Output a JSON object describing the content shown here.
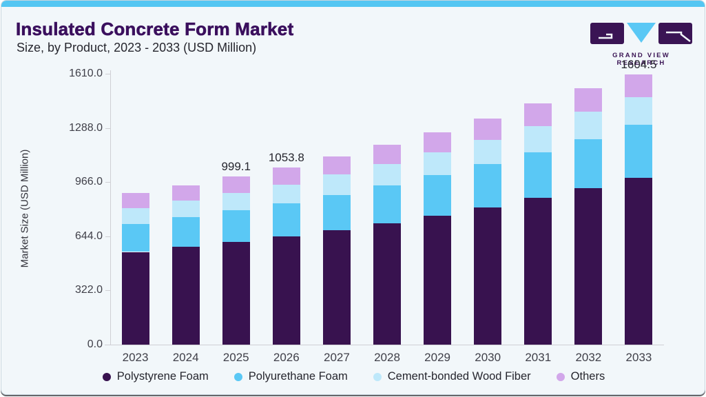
{
  "header": {
    "title": "Insulated Concrete Form Market",
    "subtitle": "Size, by Product, 2023 - 2033 (USD Million)",
    "logo_text": "GRAND VIEW RESEARCH"
  },
  "colors": {
    "accent_topbar": "#54c6f2",
    "card_background": "#f2f7fa",
    "title_purple": "#3a0f5d",
    "axis_line": "#cfcfd4",
    "tick_text": "#3f3f48",
    "logo_purple": "#3a1454",
    "logo_cyan": "#5ac8f5"
  },
  "chart_data": {
    "type": "bar",
    "stacked": true,
    "title": "Insulated Concrete Form Market Size, by Product, 2023 - 2033 (USD Million)",
    "xlabel": "",
    "ylabel": "Market Size (USD Million)",
    "ylim": [
      0,
      1610
    ],
    "ytick_labels": [
      "0.0",
      "322.0",
      "644.0",
      "966.0",
      "1288.0",
      "1610.0"
    ],
    "yticks": [
      0,
      322,
      644,
      966,
      1288,
      1610
    ],
    "grid": false,
    "legend_position": "bottom",
    "categories": [
      "2023",
      "2024",
      "2025",
      "2026",
      "2027",
      "2028",
      "2029",
      "2030",
      "2031",
      "2032",
      "2033"
    ],
    "series": [
      {
        "name": "Polystyrene Foam",
        "color": "#38124f",
        "values": [
          551,
          580,
          609,
          643,
          681,
          723,
          768,
          817,
          871,
          929,
          991
        ]
      },
      {
        "name": "Polyurethane Foam",
        "color": "#5ac8f5",
        "values": [
          167,
          176,
          189,
          197,
          210,
          224,
          240,
          256,
          273,
          292,
          314
        ]
      },
      {
        "name": "Cement-bonded Wood Fiber",
        "color": "#bee8fa",
        "values": [
          94,
          99,
          103,
          112,
          119,
          127,
          135,
          144,
          153,
          163,
          167
        ]
      },
      {
        "name": "Others",
        "color": "#d2a7ea",
        "values": [
          90,
          93,
          98.1,
          101.8,
          107,
          113,
          120,
          127,
          135,
          142,
          132.5
        ]
      }
    ],
    "total_labels": [
      "",
      "",
      "999.1",
      "1053.8",
      "",
      "",
      "",
      "",
      "",
      "",
      "1604.5"
    ]
  }
}
